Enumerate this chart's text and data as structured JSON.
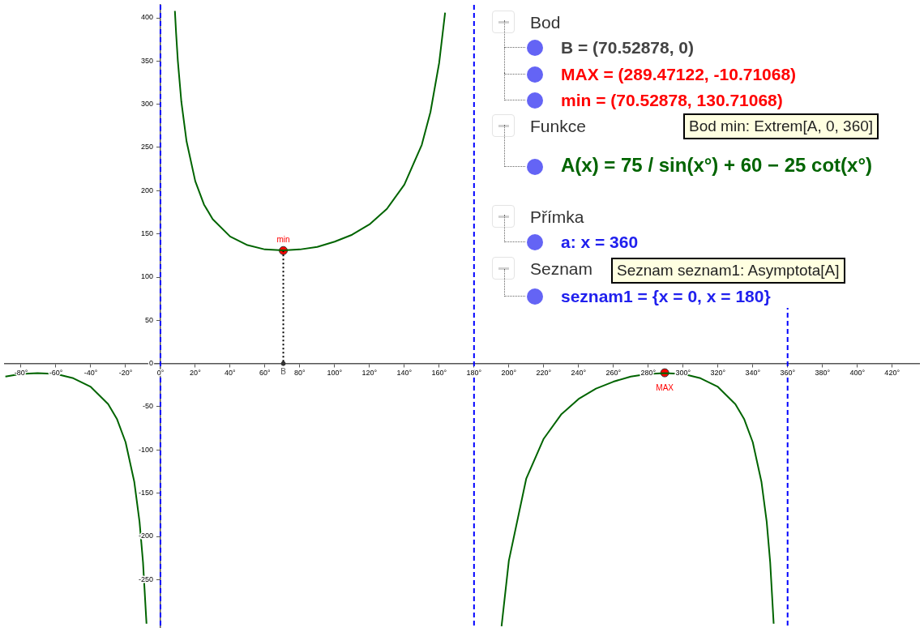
{
  "chart_data": {
    "type": "line",
    "grid": false,
    "legend": false,
    "marker": "none",
    "xlim": [
      -89.3,
      435.5
    ],
    "ylim": [
      -305,
      415
    ],
    "xticks": [
      {
        "value": -80,
        "label": "-80°"
      },
      {
        "value": -60,
        "label": "-60°"
      },
      {
        "value": -40,
        "label": "-40°"
      },
      {
        "value": -20,
        "label": "-20°"
      },
      {
        "value": 0,
        "label": "0°"
      },
      {
        "value": 20,
        "label": "20°"
      },
      {
        "value": 40,
        "label": "40°"
      },
      {
        "value": 60,
        "label": "60°"
      },
      {
        "value": 80,
        "label": "80°"
      },
      {
        "value": 100,
        "label": "100°"
      },
      {
        "value": 120,
        "label": "120°"
      },
      {
        "value": 140,
        "label": "140°"
      },
      {
        "value": 160,
        "label": "160°"
      },
      {
        "value": 180,
        "label": "180°"
      },
      {
        "value": 200,
        "label": "200°"
      },
      {
        "value": 220,
        "label": "220°"
      },
      {
        "value": 240,
        "label": "240°"
      },
      {
        "value": 260,
        "label": "260°"
      },
      {
        "value": 280,
        "label": "280°"
      },
      {
        "value": 300,
        "label": "300°"
      },
      {
        "value": 320,
        "label": "320°"
      },
      {
        "value": 340,
        "label": "340°"
      },
      {
        "value": 360,
        "label": "360°"
      },
      {
        "value": 380,
        "label": "380°"
      },
      {
        "value": 400,
        "label": "400°"
      },
      {
        "value": 420,
        "label": "420°"
      }
    ],
    "yticks": [
      -250,
      -200,
      -150,
      -100,
      -50,
      0,
      50,
      100,
      150,
      200,
      250,
      300,
      350,
      400
    ],
    "series": [
      {
        "type": "line",
        "color": "#006400",
        "x": [
          -89,
          -80,
          -70.53,
          -60,
          -50,
          -40,
          -30,
          -25,
          -20,
          -15,
          -12,
          -10,
          -8,
          -1,
          8.3,
          9,
          10,
          12,
          15,
          20,
          25,
          30,
          40,
          50,
          60,
          70.53,
          80,
          90,
          100,
          110,
          120,
          130,
          140,
          150,
          155,
          160,
          163.4,
          180,
          195.8,
          200,
          210,
          220,
          230,
          240,
          250,
          260,
          270,
          280,
          289.47,
          300,
          310,
          320,
          330,
          335,
          340,
          345,
          348,
          350,
          352
        ],
        "values": [
          -15,
          -12,
          -11,
          -12,
          -17,
          -27,
          -47,
          -64,
          -91,
          -137,
          -183,
          -230,
          -301,
          null,
          408,
          382,
          350,
          303,
          257,
          211,
          184,
          167,
          147,
          137,
          132,
          131,
          132,
          135,
          141,
          149,
          161,
          179,
          207,
          253,
          291,
          348,
          406,
          null,
          -304,
          -228,
          -133,
          -87,
          -59,
          -41,
          -29,
          -21,
          -15,
          -12,
          -11,
          -12,
          -17,
          -27,
          -47,
          -64,
          -91,
          -137,
          -183,
          -230,
          -301
        ]
      },
      {
        "type": "line",
        "color": "#000000",
        "line_style": "dotted",
        "marker": "none",
        "x": [
          70.52878,
          70.52878
        ],
        "values": [
          130.71068,
          0
        ]
      },
      {
        "type": "scatter",
        "color": "#ff0000",
        "marker": "circle",
        "x": [
          70.52878,
          289.47122
        ],
        "values": [
          130.71068,
          -10.71068
        ],
        "value_labels": [
          "min",
          "MAX"
        ]
      },
      {
        "type": "scatter",
        "color": "#333333",
        "marker": "circle",
        "x": [
          70.52878
        ],
        "values": [
          0
        ],
        "value_labels": [
          "B"
        ]
      }
    ],
    "ref_lines": [
      {
        "axis": "x",
        "value": 0,
        "color": "#0000ff",
        "line_style": "dashed"
      },
      {
        "axis": "x",
        "value": 180,
        "color": "#0000ff",
        "line_style": "dashed"
      },
      {
        "axis": "x",
        "value": 360,
        "color": "#0000ff",
        "line_style": "dashed"
      }
    ],
    "annotations": [
      "Bod",
      "B = (70.52878, 0)",
      "MAX = (289.47122, -10.71068)",
      "min = (70.52878, 130.71068)",
      "Funkce",
      "Bod min: Extrem[A, 0, 360]",
      "A(x) = 75 / sin(x°) + 60 − 25 cot(x°)",
      "Přímka",
      "a: x = 360",
      "Seznam",
      "Seznam seznam1: Asymptota[A]",
      "seznam1 = {x = 0, x = 180}"
    ]
  }
}
